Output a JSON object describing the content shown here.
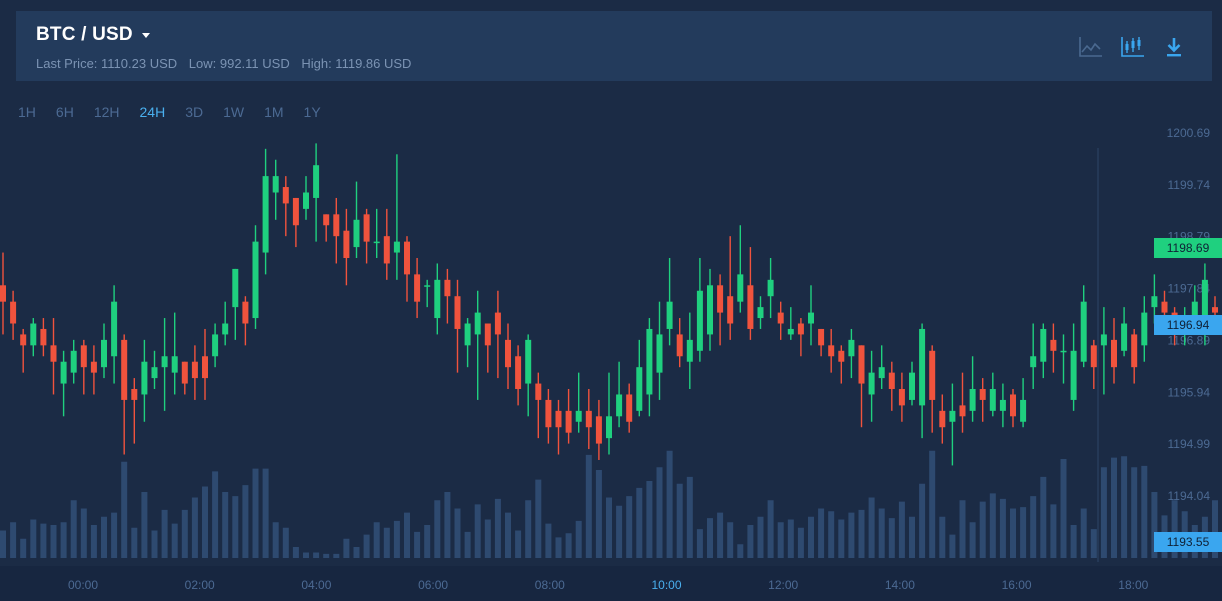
{
  "header": {
    "pair": "BTC / USD",
    "last_price": "Last Price: 1110.23 USD",
    "low": "Low: 992.11 USD",
    "high": "High: 1119.86 USD"
  },
  "icons": {
    "line_chart": "line-chart-icon",
    "candlestick_chart": "candlestick-chart-icon",
    "download": "download-icon"
  },
  "timeframes": [
    {
      "label": "1H",
      "active": false
    },
    {
      "label": "6H",
      "active": false
    },
    {
      "label": "12H",
      "active": false
    },
    {
      "label": "24H",
      "active": true
    },
    {
      "label": "3D",
      "active": false
    },
    {
      "label": "1W",
      "active": false
    },
    {
      "label": "1M",
      "active": false
    },
    {
      "label": "1Y",
      "active": false
    }
  ],
  "colors": {
    "background": "#1b2b45",
    "header": "#233b5c",
    "up": "#1fd07f",
    "down": "#f0533d",
    "volume": "#2e4a70",
    "axis_text": "#4c6a93",
    "accent": "#3aa6ef"
  },
  "chart_data": {
    "type": "candlestick",
    "y_ticks": [
      "1200.69",
      "1199.74",
      "1198.79",
      "1197.84",
      "1196.89",
      "1195.94",
      "1194.99",
      "1194.04"
    ],
    "x_ticks": [
      "00:00",
      "02:00",
      "04:00",
      "06:00",
      "08:00",
      "10:00",
      "12:00",
      "14:00",
      "16:00",
      "18:00"
    ],
    "x_highlight": "10:00",
    "ylim": [
      1193.4,
      1200.8
    ],
    "price_tags": [
      {
        "value": "1198.69",
        "color": "green"
      },
      {
        "value": "1196.94",
        "color": "blue"
      },
      {
        "value": "1193.55",
        "color": "blue"
      }
    ],
    "candles": [
      [
        1197.9,
        1197.6,
        1198.5,
        1197.0,
        20
      ],
      [
        1197.6,
        1197.2,
        1197.8,
        1196.9,
        26
      ],
      [
        1197.0,
        1196.8,
        1197.1,
        1196.3,
        14
      ],
      [
        1196.8,
        1197.2,
        1197.3,
        1196.6,
        28
      ],
      [
        1197.1,
        1196.8,
        1197.3,
        1196.6,
        25
      ],
      [
        1196.8,
        1196.5,
        1197.3,
        1195.9,
        24
      ],
      [
        1196.1,
        1196.5,
        1196.7,
        1195.5,
        26
      ],
      [
        1196.3,
        1196.7,
        1196.9,
        1196.1,
        42
      ],
      [
        1196.8,
        1196.4,
        1196.9,
        1195.9,
        36
      ],
      [
        1196.5,
        1196.3,
        1196.8,
        1195.9,
        24
      ],
      [
        1196.4,
        1196.9,
        1197.2,
        1196.2,
        30
      ],
      [
        1196.6,
        1197.6,
        1197.9,
        1196.1,
        33
      ],
      [
        1196.9,
        1195.8,
        1197.0,
        1194.8,
        70
      ],
      [
        1196.0,
        1195.8,
        1196.2,
        1195.0,
        22
      ],
      [
        1195.9,
        1196.5,
        1196.9,
        1195.4,
        48
      ],
      [
        1196.2,
        1196.4,
        1196.7,
        1196.0,
        20
      ],
      [
        1196.4,
        1196.6,
        1197.3,
        1195.6,
        35
      ],
      [
        1196.3,
        1196.6,
        1197.4,
        1195.9,
        25
      ],
      [
        1196.5,
        1196.1,
        1196.5,
        1195.9,
        35
      ],
      [
        1196.5,
        1196.2,
        1196.8,
        1195.8,
        44
      ],
      [
        1196.6,
        1196.2,
        1197.1,
        1195.8,
        52
      ],
      [
        1196.6,
        1197.0,
        1197.2,
        1196.4,
        63
      ],
      [
        1197.0,
        1197.2,
        1197.6,
        1196.8,
        48
      ],
      [
        1197.5,
        1198.2,
        1198.2,
        1196.9,
        45
      ],
      [
        1197.6,
        1197.2,
        1197.7,
        1196.8,
        53
      ],
      [
        1197.3,
        1198.7,
        1199.0,
        1197.1,
        65
      ],
      [
        1198.5,
        1199.9,
        1200.4,
        1198.1,
        65
      ],
      [
        1199.6,
        1199.9,
        1200.2,
        1199.1,
        26
      ],
      [
        1199.7,
        1199.4,
        1199.9,
        1198.8,
        22
      ],
      [
        1199.5,
        1199.0,
        1199.5,
        1198.6,
        8
      ],
      [
        1199.3,
        1199.6,
        1199.9,
        1199.1,
        4
      ],
      [
        1199.5,
        1200.1,
        1200.5,
        1198.7,
        4
      ],
      [
        1199.2,
        1199.0,
        1199.2,
        1198.7,
        3
      ],
      [
        1199.2,
        1198.8,
        1199.5,
        1198.3,
        3
      ],
      [
        1198.9,
        1198.4,
        1199.3,
        1197.9,
        14
      ],
      [
        1198.6,
        1199.1,
        1199.8,
        1198.4,
        8
      ],
      [
        1199.2,
        1198.7,
        1199.3,
        1198.3,
        17
      ],
      [
        1198.7,
        1198.7,
        1199.3,
        1198.4,
        26
      ],
      [
        1198.8,
        1198.3,
        1199.3,
        1198.0,
        22
      ],
      [
        1198.5,
        1198.7,
        1200.3,
        1198.0,
        27
      ],
      [
        1198.7,
        1198.1,
        1198.8,
        1197.6,
        33
      ],
      [
        1198.1,
        1197.6,
        1198.4,
        1197.3,
        19
      ],
      [
        1197.9,
        1197.9,
        1198.0,
        1197.5,
        24
      ],
      [
        1197.3,
        1198.0,
        1198.3,
        1197.0,
        42
      ],
      [
        1198.0,
        1197.7,
        1198.2,
        1197.2,
        48
      ],
      [
        1197.7,
        1197.1,
        1198.0,
        1196.3,
        36
      ],
      [
        1196.8,
        1197.2,
        1197.3,
        1196.4,
        19
      ],
      [
        1197.0,
        1197.4,
        1197.8,
        1195.8,
        39
      ],
      [
        1197.2,
        1196.8,
        1197.2,
        1196.3,
        28
      ],
      [
        1197.4,
        1197.0,
        1197.8,
        1196.2,
        43
      ],
      [
        1196.9,
        1196.4,
        1197.2,
        1196.0,
        33
      ],
      [
        1196.6,
        1196.0,
        1196.8,
        1195.7,
        20
      ],
      [
        1196.1,
        1196.9,
        1197.0,
        1195.5,
        42
      ],
      [
        1196.1,
        1195.8,
        1196.3,
        1195.1,
        57
      ],
      [
        1195.8,
        1195.3,
        1196.0,
        1195.0,
        25
      ],
      [
        1195.6,
        1195.3,
        1195.8,
        1194.8,
        15
      ],
      [
        1195.6,
        1195.2,
        1196.0,
        1195.0,
        18
      ],
      [
        1195.4,
        1195.6,
        1196.3,
        1195.2,
        27
      ],
      [
        1195.6,
        1195.3,
        1196.0,
        1194.9,
        75
      ],
      [
        1195.5,
        1195.0,
        1195.8,
        1194.7,
        64
      ],
      [
        1195.1,
        1195.5,
        1196.3,
        1194.8,
        44
      ],
      [
        1195.5,
        1195.9,
        1196.5,
        1195.3,
        38
      ],
      [
        1195.9,
        1195.4,
        1196.1,
        1195.2,
        45
      ],
      [
        1195.6,
        1196.4,
        1196.9,
        1195.5,
        51
      ],
      [
        1195.9,
        1197.1,
        1197.3,
        1195.5,
        56
      ],
      [
        1196.3,
        1197.0,
        1197.6,
        1195.8,
        66
      ],
      [
        1197.1,
        1197.6,
        1198.4,
        1196.8,
        78
      ],
      [
        1197.0,
        1196.6,
        1197.3,
        1196.4,
        54
      ],
      [
        1196.5,
        1196.9,
        1197.4,
        1196.0,
        59
      ],
      [
        1196.7,
        1197.8,
        1198.4,
        1196.5,
        21
      ],
      [
        1197.0,
        1197.9,
        1198.2,
        1196.7,
        29
      ],
      [
        1197.9,
        1197.4,
        1198.1,
        1196.8,
        33
      ],
      [
        1197.7,
        1197.2,
        1198.8,
        1196.9,
        26
      ],
      [
        1197.6,
        1198.1,
        1199.0,
        1197.4,
        10
      ],
      [
        1197.9,
        1197.1,
        1198.6,
        1196.9,
        24
      ],
      [
        1197.3,
        1197.5,
        1197.7,
        1197.1,
        30
      ],
      [
        1197.7,
        1198.0,
        1198.4,
        1197.3,
        42
      ],
      [
        1197.4,
        1197.2,
        1197.6,
        1196.9,
        26
      ],
      [
        1197.0,
        1197.1,
        1197.5,
        1196.9,
        28
      ],
      [
        1197.2,
        1197.0,
        1197.3,
        1196.6,
        22
      ],
      [
        1197.2,
        1197.4,
        1197.9,
        1196.8,
        30
      ],
      [
        1197.1,
        1196.8,
        1197.1,
        1196.6,
        36
      ],
      [
        1196.8,
        1196.6,
        1197.1,
        1196.3,
        34
      ],
      [
        1196.7,
        1196.5,
        1196.8,
        1196.1,
        28
      ],
      [
        1196.6,
        1196.9,
        1197.1,
        1196.2,
        33
      ],
      [
        1196.8,
        1196.1,
        1196.8,
        1195.3,
        35
      ],
      [
        1195.9,
        1196.3,
        1196.7,
        1195.4,
        44
      ],
      [
        1196.2,
        1196.4,
        1196.8,
        1196.0,
        36
      ],
      [
        1196.3,
        1196.0,
        1196.5,
        1195.6,
        29
      ],
      [
        1196.0,
        1195.7,
        1196.3,
        1195.4,
        41
      ],
      [
        1195.8,
        1196.3,
        1196.5,
        1195.7,
        30
      ],
      [
        1195.7,
        1197.1,
        1197.2,
        1195.1,
        54
      ],
      [
        1196.7,
        1195.8,
        1196.8,
        1195.2,
        78
      ],
      [
        1195.6,
        1195.3,
        1195.9,
        1195.0,
        30
      ],
      [
        1195.4,
        1195.6,
        1196.1,
        1194.6,
        17
      ],
      [
        1195.7,
        1195.5,
        1196.3,
        1195.2,
        42
      ],
      [
        1195.6,
        1196.0,
        1196.6,
        1195.4,
        26
      ],
      [
        1196.0,
        1195.8,
        1196.2,
        1195.4,
        41
      ],
      [
        1195.6,
        1196.0,
        1196.3,
        1195.5,
        47
      ],
      [
        1195.6,
        1195.8,
        1196.1,
        1195.3,
        43
      ],
      [
        1195.9,
        1195.5,
        1196.0,
        1195.3,
        36
      ],
      [
        1195.4,
        1195.8,
        1196.2,
        1195.3,
        37
      ],
      [
        1196.4,
        1196.6,
        1197.2,
        1196.0,
        45
      ],
      [
        1196.5,
        1197.1,
        1197.2,
        1196.2,
        59
      ],
      [
        1196.9,
        1196.7,
        1197.2,
        1196.3,
        39
      ],
      [
        1196.7,
        1196.7,
        1197.0,
        1196.1,
        72
      ],
      [
        1195.8,
        1196.7,
        1197.2,
        1195.6,
        24
      ],
      [
        1196.5,
        1197.6,
        1197.9,
        1196.4,
        36
      ],
      [
        1196.8,
        1196.4,
        1196.9,
        1196.0,
        21
      ],
      [
        1196.8,
        1197.0,
        1197.5,
        1195.9,
        66
      ],
      [
        1196.9,
        1196.4,
        1197.3,
        1196.1,
        73
      ],
      [
        1196.7,
        1197.2,
        1197.5,
        1196.6,
        74
      ],
      [
        1197.0,
        1196.4,
        1197.1,
        1196.1,
        66
      ],
      [
        1196.8,
        1197.4,
        1197.7,
        1196.5,
        67
      ],
      [
        1197.5,
        1197.7,
        1198.1,
        1197.2,
        48
      ],
      [
        1197.6,
        1197.4,
        1197.8,
        1197.1,
        31
      ],
      [
        1197.4,
        1197.0,
        1197.5,
        1196.8,
        42
      ],
      [
        1197.1,
        1197.3,
        1197.5,
        1196.8,
        34
      ],
      [
        1197.3,
        1197.6,
        1197.9,
        1197.2,
        24
      ],
      [
        1197.1,
        1198.0,
        1198.3,
        1196.8,
        30
      ],
      [
        1197.5,
        1197.4,
        1197.7,
        1197.1,
        42
      ],
      [
        1197.6,
        1196.3,
        1197.7,
        1195.9,
        32
      ],
      [
        1196.5,
        1197.7,
        1197.9,
        1195.5,
        39
      ],
      [
        1196.7,
        1197.2,
        1197.6,
        1196.5,
        42
      ],
      [
        1197.0,
        1197.0,
        1197.3,
        1196.7,
        72
      ],
      [
        1197.3,
        1197.6,
        1197.9,
        1197.1,
        34
      ],
      [
        1197.4,
        1197.8,
        1198.0,
        1197.2,
        34
      ],
      [
        1197.6,
        1197.3,
        1197.7,
        1197.0,
        38
      ],
      [
        1197.4,
        1198.3,
        1198.5,
        1197.3,
        72
      ],
      [
        1198.1,
        1198.0,
        1198.3,
        1197.6,
        12
      ],
      [
        1197.9,
        1197.6,
        1198.0,
        1197.4,
        10
      ]
    ]
  }
}
